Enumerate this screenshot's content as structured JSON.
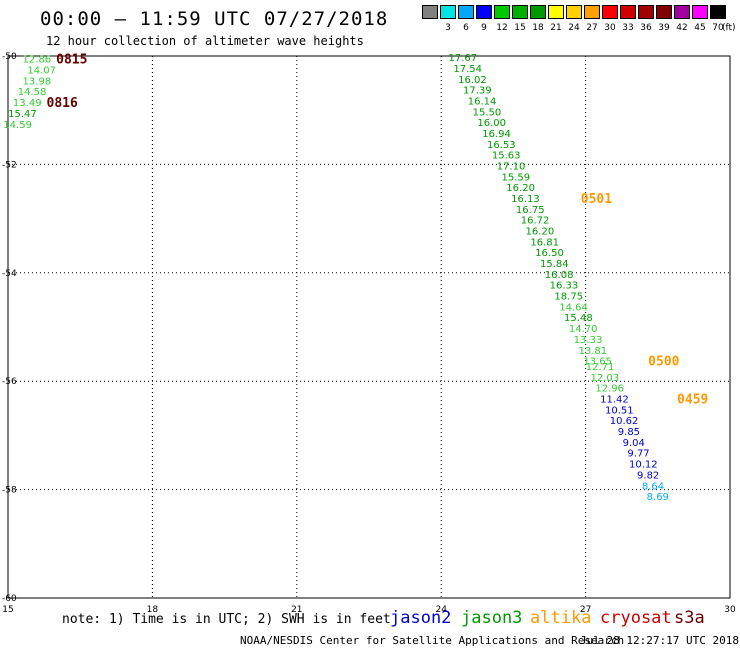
{
  "header": {
    "title": "00:00 – 11:59 UTC 07/27/2018",
    "subtitle": "12 hour collection of altimeter wave heights"
  },
  "legend": {
    "unit": "(ft)",
    "swatches": [
      {
        "label": "",
        "color": "#808080"
      },
      {
        "label": "3",
        "color": "#00e5e5"
      },
      {
        "label": "6",
        "color": "#00a8ff"
      },
      {
        "label": "9",
        "color": "#0000ff"
      },
      {
        "label": "12",
        "color": "#00c800"
      },
      {
        "label": "15",
        "color": "#00b000"
      },
      {
        "label": "18",
        "color": "#009900"
      },
      {
        "label": "21",
        "color": "#ffff00"
      },
      {
        "label": "24",
        "color": "#ffd000"
      },
      {
        "label": "27",
        "color": "#ffa000"
      },
      {
        "label": "30",
        "color": "#ff0000"
      },
      {
        "label": "33",
        "color": "#d00000"
      },
      {
        "label": "36",
        "color": "#a00000"
      },
      {
        "label": "39",
        "color": "#800000"
      },
      {
        "label": "42",
        "color": "#a000a0"
      },
      {
        "label": "45",
        "color": "#ff00ff"
      },
      {
        "label": "70",
        "color": "#000000"
      }
    ]
  },
  "footer": {
    "note": "note: 1) Time is in UTC; 2) SWH is in feet",
    "satellites": [
      {
        "name": "jason2",
        "color": "#0000cc"
      },
      {
        "name": "jason3",
        "color": "#009900"
      },
      {
        "name": "altika",
        "color": "#ff9900"
      },
      {
        "name": "cryosat",
        "color": "#cc0000"
      },
      {
        "name": "s3a",
        "color": "#660000"
      }
    ],
    "credit": "NOAA/NESDIS Center for Satellite Applications and Research",
    "generated": "Jul 28 12:27:17 UTC 2018"
  },
  "chart_data": {
    "type": "scatter",
    "title": "00:00 – 11:59 UTC 07/27/2018",
    "subtitle": "12 hour collection of altimeter wave heights",
    "xlim": [
      15,
      30
    ],
    "ylim": [
      -60,
      -50
    ],
    "x_ticks": [
      "15",
      "18",
      "21",
      "24",
      "27",
      "30"
    ],
    "y_ticks": [
      "-50",
      "-52",
      "-54",
      "-56",
      "-58",
      "-60"
    ],
    "grid": true,
    "unit": "ft",
    "colors": {
      "green": "#009900",
      "lightgreen": "#33cc33",
      "blue": "#0000cc",
      "cyan": "#00aaff",
      "orange": "#ff9900",
      "maroon": "#660000"
    },
    "series": [
      {
        "name": "s3a",
        "color": "#660000",
        "points": [
          {
            "x": 15.6,
            "y": -50.05,
            "v": "12.86",
            "c": "#33cc33"
          },
          {
            "x": 15.7,
            "y": -50.25,
            "v": "14.07",
            "c": "#33cc33"
          },
          {
            "x": 15.6,
            "y": -50.45,
            "v": "13.98",
            "c": "#33cc33"
          },
          {
            "x": 15.5,
            "y": -50.65,
            "v": "14.58",
            "c": "#33cc33"
          },
          {
            "x": 15.4,
            "y": -50.85,
            "v": "13.49",
            "c": "#33cc33"
          },
          {
            "x": 15.3,
            "y": -51.05,
            "v": "15.47",
            "c": "#009900"
          },
          {
            "x": 15.2,
            "y": -51.25,
            "v": "14.59",
            "c": "#33cc33"
          }
        ]
      },
      {
        "name": "altika",
        "color": "#ff9900",
        "points": [
          {
            "x": 24.45,
            "y": -50.02,
            "v": "17.67",
            "c": "#009900"
          },
          {
            "x": 24.55,
            "y": -50.22,
            "v": "17.54",
            "c": "#009900"
          },
          {
            "x": 24.65,
            "y": -50.42,
            "v": "16.02",
            "c": "#009900"
          },
          {
            "x": 24.75,
            "y": -50.62,
            "v": "17.39",
            "c": "#009900"
          },
          {
            "x": 24.85,
            "y": -50.82,
            "v": "16.14",
            "c": "#009900"
          },
          {
            "x": 24.95,
            "y": -51.02,
            "v": "15.50",
            "c": "#009900"
          },
          {
            "x": 25.05,
            "y": -51.22,
            "v": "16.00",
            "c": "#009900"
          },
          {
            "x": 25.15,
            "y": -51.42,
            "v": "16.94",
            "c": "#009900"
          },
          {
            "x": 25.25,
            "y": -51.62,
            "v": "16.53",
            "c": "#009900"
          },
          {
            "x": 25.35,
            "y": -51.82,
            "v": "15.63",
            "c": "#009900"
          },
          {
            "x": 25.45,
            "y": -52.02,
            "v": "17.10",
            "c": "#009900"
          },
          {
            "x": 25.55,
            "y": -52.22,
            "v": "15.59",
            "c": "#009900"
          },
          {
            "x": 25.65,
            "y": -52.42,
            "v": "16.20",
            "c": "#009900"
          },
          {
            "x": 25.75,
            "y": -52.62,
            "v": "16.13",
            "c": "#009900"
          },
          {
            "x": 25.85,
            "y": -52.82,
            "v": "16.75",
            "c": "#009900"
          },
          {
            "x": 25.95,
            "y": -53.02,
            "v": "16.72",
            "c": "#009900"
          },
          {
            "x": 26.05,
            "y": -53.22,
            "v": "16.20",
            "c": "#009900"
          },
          {
            "x": 26.15,
            "y": -53.42,
            "v": "16.81",
            "c": "#009900"
          },
          {
            "x": 26.25,
            "y": -53.62,
            "v": "16.50",
            "c": "#009900"
          },
          {
            "x": 26.35,
            "y": -53.82,
            "v": "15.84",
            "c": "#009900"
          },
          {
            "x": 26.45,
            "y": -54.02,
            "v": "16.08",
            "c": "#009900"
          },
          {
            "x": 26.55,
            "y": -54.22,
            "v": "16.33",
            "c": "#009900"
          },
          {
            "x": 26.65,
            "y": -54.42,
            "v": "18.75",
            "c": "#009900"
          },
          {
            "x": 26.75,
            "y": -54.62,
            "v": "14.64",
            "c": "#33cc33"
          },
          {
            "x": 26.85,
            "y": -54.82,
            "v": "15.48",
            "c": "#009900"
          },
          {
            "x": 26.95,
            "y": -55.02,
            "v": "14.70",
            "c": "#33cc33"
          },
          {
            "x": 27.05,
            "y": -55.22,
            "v": "13.33",
            "c": "#33cc33"
          },
          {
            "x": 27.15,
            "y": -55.42,
            "v": "13.81",
            "c": "#33cc33"
          },
          {
            "x": 27.25,
            "y": -55.62,
            "v": "13.65",
            "c": "#33cc33"
          },
          {
            "x": 27.3,
            "y": -55.72,
            "v": "12.71",
            "c": "#33cc33"
          },
          {
            "x": 27.4,
            "y": -55.92,
            "v": "12.03",
            "c": "#33cc33"
          },
          {
            "x": 27.5,
            "y": -56.12,
            "v": "12.96",
            "c": "#33cc33"
          },
          {
            "x": 27.6,
            "y": -56.32,
            "v": "11.42",
            "c": "#0000cc"
          },
          {
            "x": 27.7,
            "y": -56.52,
            "v": "10.51",
            "c": "#0000cc"
          },
          {
            "x": 27.8,
            "y": -56.72,
            "v": "10.62",
            "c": "#0000cc"
          },
          {
            "x": 27.9,
            "y": -56.92,
            "v": "9.85",
            "c": "#0000cc"
          },
          {
            "x": 28.0,
            "y": -57.12,
            "v": "9.04",
            "c": "#0000cc"
          },
          {
            "x": 28.1,
            "y": -57.32,
            "v": "9.77",
            "c": "#0000cc"
          },
          {
            "x": 28.2,
            "y": -57.52,
            "v": "10.12",
            "c": "#0000cc"
          },
          {
            "x": 28.3,
            "y": -57.72,
            "v": "9.82",
            "c": "#0000cc"
          },
          {
            "x": 28.4,
            "y": -57.92,
            "v": "8.64",
            "c": "#00aaff"
          },
          {
            "x": 28.5,
            "y": -58.12,
            "v": "8.69",
            "c": "#00aaff"
          }
        ]
      }
    ],
    "time_labels": [
      {
        "x": 16.0,
        "y": -50.05,
        "text": "0815",
        "c": "#660000"
      },
      {
        "x": 15.8,
        "y": -50.85,
        "text": "0816",
        "c": "#660000"
      },
      {
        "x": 26.9,
        "y": -52.62,
        "text": "0501",
        "c": "#ff9900"
      },
      {
        "x": 28.3,
        "y": -55.62,
        "text": "0500",
        "c": "#ff9900"
      },
      {
        "x": 28.9,
        "y": -56.32,
        "text": "0459",
        "c": "#ff9900"
      }
    ]
  }
}
